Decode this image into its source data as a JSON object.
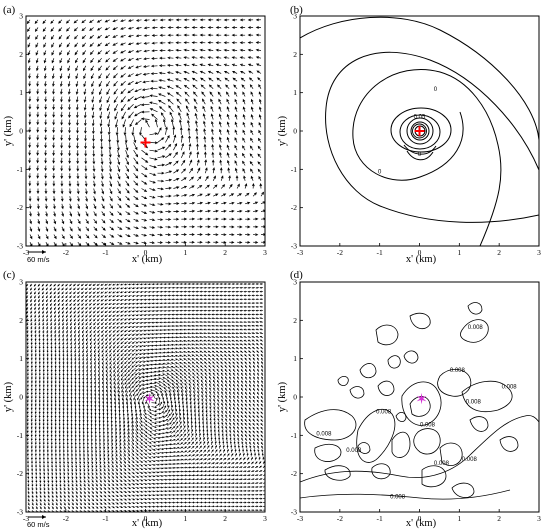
{
  "chart_data": [
    {
      "panel": "(a)",
      "type": "vector",
      "xlabel": "x' (km)",
      "ylabel": "y' (km)",
      "xlim": [
        -3,
        3
      ],
      "ylim": [
        -3,
        3
      ],
      "xticks": [
        "-3",
        "-2",
        "-1",
        "0",
        "1",
        "2",
        "3"
      ],
      "yticks": [
        "-3",
        "-2",
        "-1",
        "0",
        "1",
        "2",
        "3"
      ],
      "scale_label": "60 m/s",
      "markers": [
        {
          "symbol": "+",
          "x": 0.0,
          "y": -0.3,
          "color": "#ff0000"
        }
      ],
      "grid_spacing": 0.2,
      "vortex": {
        "cx": 0.0,
        "cy": 0.1
      }
    },
    {
      "panel": "(b)",
      "type": "contour",
      "xlabel": "x' (km)",
      "ylabel": "y' (km)",
      "xlim": [
        -3,
        3
      ],
      "ylim": [
        -3,
        3
      ],
      "xticks": [
        "-3",
        "-2",
        "-1",
        "0",
        "1",
        "2",
        "3"
      ],
      "yticks": [
        "-3",
        "-2",
        "-1",
        "0",
        "1",
        "2",
        "3"
      ],
      "contour_labels": [
        {
          "text": "0.05",
          "x": 0.0,
          "y": 0.38
        },
        {
          "text": "0",
          "x": 0.4,
          "y": 1.1
        },
        {
          "text": "0",
          "x": -1.0,
          "y": -1.05
        },
        {
          "text": "0",
          "x": 0.0,
          "y": -0.6
        }
      ],
      "markers": [
        {
          "symbol": "+",
          "x": 0.0,
          "y": 0.0,
          "color": "#ff0000"
        }
      ]
    },
    {
      "panel": "(c)",
      "type": "vector",
      "xlabel": "x' (km)",
      "ylabel": "y' (km)",
      "xlim": [
        -3,
        3
      ],
      "ylim": [
        -3,
        3
      ],
      "xticks": [
        "-3",
        "-2",
        "-1",
        "0",
        "1",
        "2",
        "3"
      ],
      "yticks": [
        "-3",
        "-2",
        "-1",
        "0",
        "1",
        "2",
        "3"
      ],
      "scale_label": "60 m/s",
      "markers": [
        {
          "symbol": "*",
          "x": 0.1,
          "y": -0.05,
          "color": "#d633d6"
        }
      ],
      "grid_spacing": 0.1,
      "vortex": {
        "cx": 0.1,
        "cy": -0.05
      }
    },
    {
      "panel": "(d)",
      "type": "contour",
      "xlabel": "x' (km)",
      "ylabel": "y' (km)",
      "xlim": [
        -3,
        3
      ],
      "ylim": [
        -3,
        3
      ],
      "xticks": [
        "-3",
        "-2",
        "-1",
        "0",
        "1",
        "2",
        "3"
      ],
      "yticks": [
        "-3",
        "-2",
        "-1",
        "0",
        "1",
        "2",
        "3"
      ],
      "contour_labels": [
        {
          "text": "0.008",
          "x": 1.4,
          "y": 1.82
        },
        {
          "text": "0.008",
          "x": 0.95,
          "y": 0.7
        },
        {
          "text": "0.008",
          "x": 2.25,
          "y": 0.28
        },
        {
          "text": "0.008",
          "x": 1.35,
          "y": -0.12
        },
        {
          "text": "0.008",
          "x": -0.9,
          "y": -0.38
        },
        {
          "text": "0.008",
          "x": -2.4,
          "y": -0.95
        },
        {
          "text": "0.008",
          "x": -1.65,
          "y": -1.38
        },
        {
          "text": "0.008",
          "x": 0.2,
          "y": -0.72
        },
        {
          "text": "0.008",
          "x": 0.55,
          "y": -1.72
        },
        {
          "text": "0.008",
          "x": 1.25,
          "y": -1.62
        },
        {
          "text": "0.008",
          "x": -0.55,
          "y": -2.6
        }
      ],
      "markers": [
        {
          "symbol": "*",
          "x": 0.05,
          "y": -0.05,
          "color": "#d633d6"
        }
      ]
    }
  ]
}
